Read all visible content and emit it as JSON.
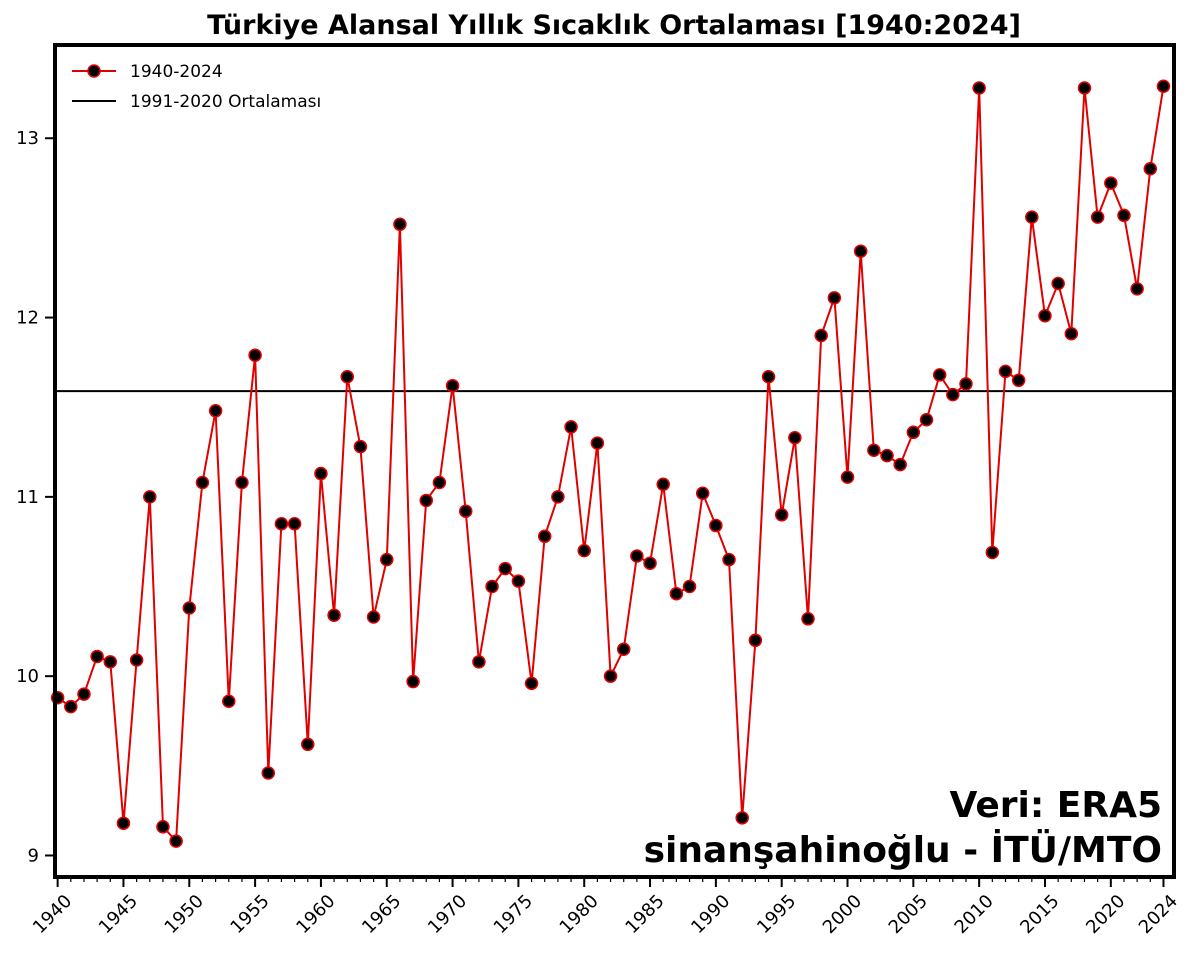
{
  "chart_data": {
    "type": "line",
    "title": "Türkiye Alansal Yıllık Sıcaklık Ortalaması [1940:2024]",
    "xlabel": "",
    "ylabel": "",
    "xlim": [
      1939.8,
      2024.8
    ],
    "ylim": [
      8.88,
      13.52
    ],
    "x_ticks": [
      1940,
      1945,
      1950,
      1955,
      1960,
      1965,
      1970,
      1975,
      1980,
      1985,
      1990,
      1995,
      2000,
      2005,
      2010,
      2015,
      2020,
      2024
    ],
    "x_tick_labels": [
      "1940",
      "1945",
      "1950",
      "1955",
      "1960",
      "1965",
      "1970",
      "1975",
      "1980",
      "1985",
      "1990",
      "1995",
      "2000",
      "2005",
      "2010",
      "2015",
      "2020",
      "2024"
    ],
    "y_ticks": [
      9,
      10,
      11,
      12,
      13
    ],
    "y_tick_labels": [
      "9",
      "10",
      "11",
      "12",
      "13"
    ],
    "grid": false,
    "legend_position": "top-left",
    "series": [
      {
        "name": "1940-2024",
        "color": "#e00000",
        "marker_fill": "#000000",
        "x": [
          1940,
          1941,
          1942,
          1943,
          1944,
          1945,
          1946,
          1947,
          1948,
          1949,
          1950,
          1951,
          1952,
          1953,
          1954,
          1955,
          1956,
          1957,
          1958,
          1959,
          1960,
          1961,
          1962,
          1963,
          1964,
          1965,
          1966,
          1967,
          1968,
          1969,
          1970,
          1971,
          1972,
          1973,
          1974,
          1975,
          1976,
          1977,
          1978,
          1979,
          1980,
          1981,
          1982,
          1983,
          1984,
          1985,
          1986,
          1987,
          1988,
          1989,
          1990,
          1991,
          1992,
          1993,
          1994,
          1995,
          1996,
          1997,
          1998,
          1999,
          2000,
          2001,
          2002,
          2003,
          2004,
          2005,
          2006,
          2007,
          2008,
          2009,
          2010,
          2011,
          2012,
          2013,
          2014,
          2015,
          2016,
          2017,
          2018,
          2019,
          2020,
          2021,
          2022,
          2023,
          2024
        ],
        "values": [
          9.88,
          9.83,
          9.9,
          10.11,
          10.08,
          9.18,
          10.09,
          11.0,
          9.16,
          9.08,
          10.38,
          11.08,
          11.48,
          9.86,
          11.08,
          11.79,
          9.46,
          10.85,
          10.85,
          9.62,
          11.13,
          10.34,
          11.67,
          11.28,
          10.33,
          10.65,
          12.52,
          9.97,
          10.98,
          11.08,
          11.62,
          10.92,
          10.08,
          10.5,
          10.6,
          10.53,
          9.96,
          10.78,
          11.0,
          11.39,
          10.7,
          11.3,
          10.0,
          10.15,
          10.67,
          10.63,
          11.07,
          10.46,
          10.5,
          11.02,
          10.84,
          10.65,
          9.21,
          10.2,
          11.67,
          10.9,
          11.33,
          10.32,
          11.9,
          12.11,
          11.11,
          12.37,
          11.26,
          11.23,
          11.18,
          11.36,
          11.43,
          11.68,
          11.57,
          11.63,
          13.28,
          10.69,
          11.7,
          11.65,
          12.56,
          12.01,
          12.19,
          11.91,
          13.28,
          12.56,
          12.75,
          12.57,
          12.16,
          12.83,
          13.29
        ]
      },
      {
        "name": "1991-2020 Ortalaması",
        "color": "#000000",
        "type": "hline",
        "value": 11.59
      }
    ]
  },
  "credits": {
    "data_source": "Veri: ERA5",
    "author": "sinanşahinoğlu - İTÜ/MTO"
  }
}
